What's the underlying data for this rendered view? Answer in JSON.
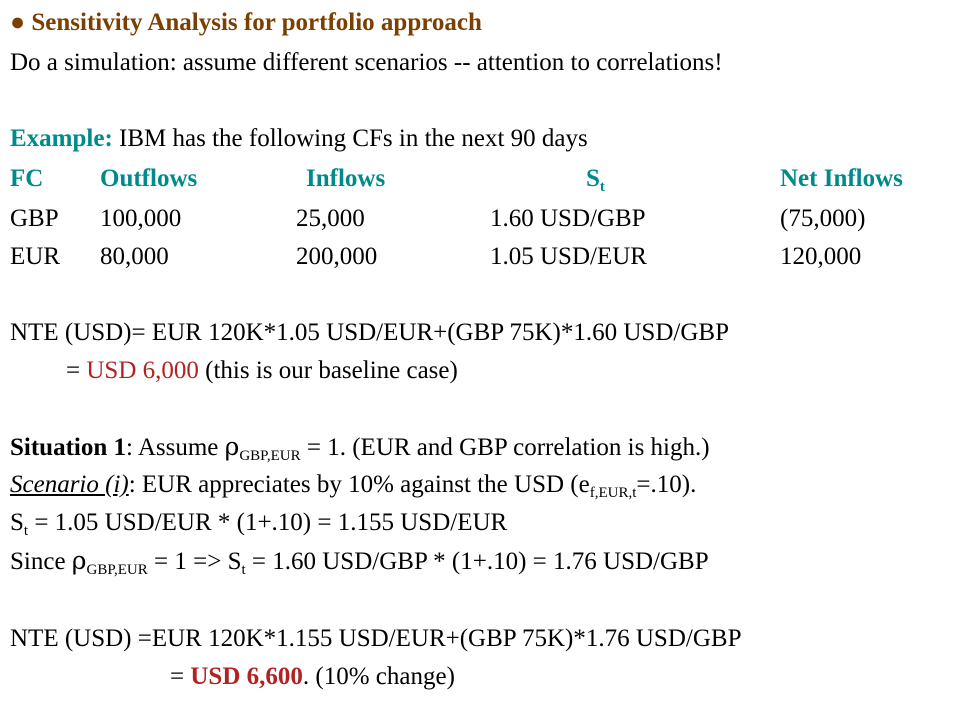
{
  "title": {
    "bullet": "●",
    "text": "Sensitivity Analysis for portfolio approach"
  },
  "intro": "Do a simulation: assume different scenarios -- attention to correlations!",
  "example": {
    "label": "Example:",
    "text": " IBM has the following CFs in the next 90 days"
  },
  "table": {
    "headers": {
      "fc": "FC",
      "outflows": "Outflows",
      "inflows": "Inflows",
      "st_main": "S",
      "st_sub": "t",
      "net": "Net Inflows"
    },
    "rows": [
      {
        "fc": "GBP",
        "outflows": "100,000",
        "inflows": "25,000",
        "st": "1.60 USD/GBP",
        "net": "(75,000)"
      },
      {
        "fc": "EUR",
        "outflows": "80,000",
        "inflows": "200,000",
        "st": "1.05 USD/EUR",
        "net": "120,000"
      }
    ]
  },
  "nte1": {
    "line1": "NTE (USD)= EUR 120K*1.05 USD/EUR+(GBP 75K)*1.60 USD/GBP",
    "eq": "= ",
    "value": "USD 6,000",
    "note": " (this is our baseline case)"
  },
  "situation": {
    "label": "Situation 1",
    "text1": ": Assume ",
    "rho": "ρ",
    "rho_sub": "GBP,EUR",
    "text2": " = 1. (EUR and GBP correlation is high.)"
  },
  "scenario": {
    "label": "Scenario (i)",
    "text1": ": EUR appreciates by 10% against the USD (e",
    "sub": "f,EUR,t",
    "text2": "=.10)."
  },
  "st_eur": {
    "s": "S",
    "sub": "t",
    "text": " = 1.05 USD/EUR * (1+.10) = 1.155 USD/EUR"
  },
  "since": {
    "text1": "Since ",
    "rho": "ρ",
    "rho_sub": "GBP,EUR",
    "text2": " = 1 => S",
    "sub": "t",
    "text3": " = 1.60 USD/GBP * (1+.10) = 1.76 USD/GBP"
  },
  "nte2": {
    "line1": "NTE (USD) =EUR 120K*1.155 USD/EUR+(GBP 75K)*1.76 USD/GBP",
    "eq": "= ",
    "value": "USD 6,600",
    "note": ". (10% change)"
  },
  "colors": {
    "brown": "#7b3f00",
    "teal": "#008b8b",
    "red": "#b22222"
  }
}
